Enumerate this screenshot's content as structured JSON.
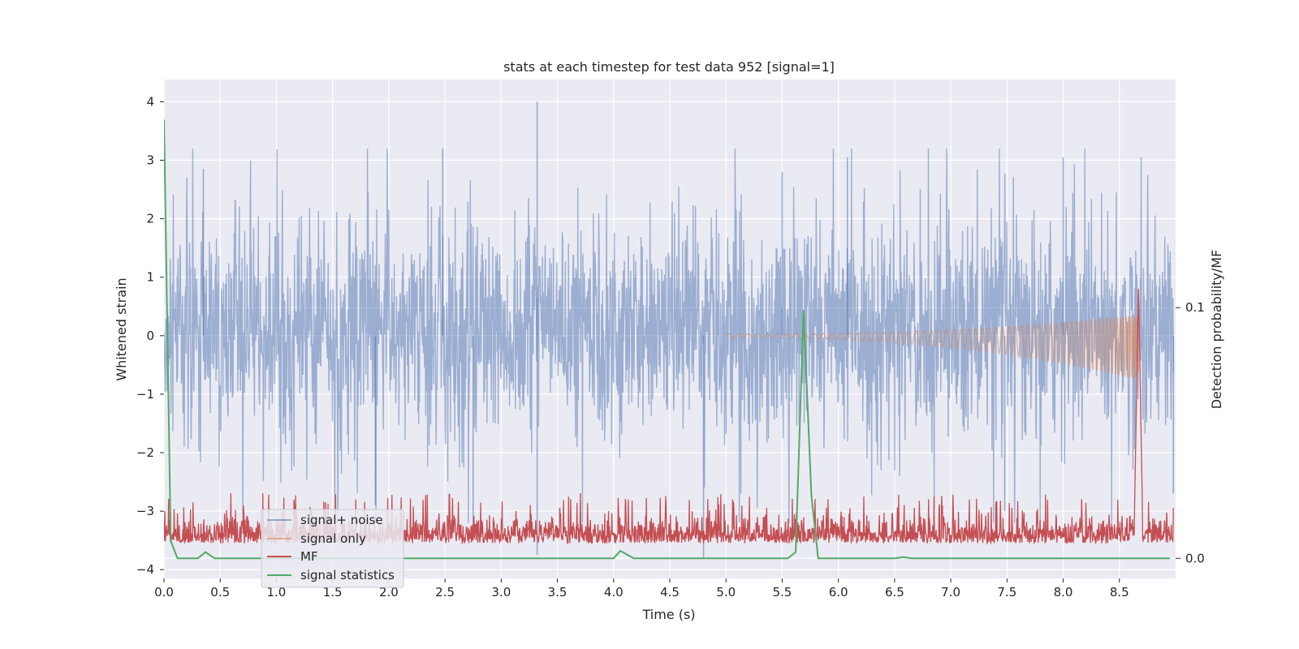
{
  "chart_data": {
    "type": "line",
    "title": "stats at each timestep for test data 952 [signal=1]",
    "xlabel": "Time (s)",
    "ylabel": "Whitened strain",
    "y2label": "Detection probability/MF",
    "xlim": [
      0,
      9.0
    ],
    "ylim": [
      -4.15,
      4.38
    ],
    "y2lim": [
      -0.008,
      0.191
    ],
    "x_ticks": [
      0.0,
      0.5,
      1.0,
      1.5,
      2.0,
      2.5,
      3.0,
      3.5,
      4.0,
      4.5,
      5.0,
      5.5,
      6.0,
      6.5,
      7.0,
      7.5,
      8.0,
      8.5
    ],
    "x_tick_labels": [
      "0.0",
      "0.5",
      "1.0",
      "1.5",
      "2.0",
      "2.5",
      "3.0",
      "3.5",
      "4.0",
      "4.5",
      "5.0",
      "5.5",
      "6.0",
      "6.5",
      "7.0",
      "7.5",
      "8.0",
      "8.5"
    ],
    "y_ticks": [
      4,
      3,
      2,
      1,
      0,
      -1,
      -2,
      -3,
      -4
    ],
    "y_tick_labels": [
      "4",
      "3",
      "2",
      "1",
      "0",
      "−1",
      "−2",
      "−3",
      "−4"
    ],
    "y2_ticks": [
      0.1,
      0.0
    ],
    "y2_tick_labels": [
      "0.1",
      "0.0"
    ],
    "grid": true,
    "legend_position": "lower-left",
    "series": [
      {
        "name": "signal+ noise",
        "axis": "left",
        "color": "#4c72b0",
        "style": "noise",
        "t_end": 8.98,
        "typical_range": [
          -1.6,
          1.8
        ],
        "extremes": [
          [
            3.32,
            4.0
          ],
          [
            3.32,
            -3.75
          ],
          [
            4.8,
            -3.8
          ],
          [
            2.75,
            -3.3
          ],
          [
            2.48,
            3.2
          ],
          [
            1.88,
            -2.9
          ],
          [
            0.35,
            2.85
          ],
          [
            5.5,
            2.8
          ],
          [
            6.08,
            3.05
          ],
          [
            7.48,
            -3.0
          ],
          [
            8.0,
            3.05
          ],
          [
            8.98,
            -2.7
          ]
        ]
      },
      {
        "name": "signal only",
        "axis": "left",
        "color": "#dd8452",
        "style": "chirp",
        "t_start": 5.0,
        "t_merger": 8.67,
        "peak_amplitude": [
          0.32,
          -0.72
        ]
      },
      {
        "name": "MF",
        "axis": "right",
        "color": "#c44e52",
        "style": "noise",
        "t_end": 8.98,
        "typical_range": [
          0.0,
          0.02
        ],
        "peak": [
          8.67,
          0.109
        ]
      },
      {
        "name": "signal statistics",
        "axis": "right",
        "color": "#55a868",
        "style": "line",
        "x": [
          0.0,
          0.06,
          0.12,
          0.3,
          0.37,
          0.45,
          4.0,
          4.06,
          4.18,
          5.55,
          5.62,
          5.69,
          5.76,
          5.82,
          6.5,
          6.58,
          6.65,
          8.95
        ],
        "y": [
          0.175,
          0.007,
          0.0,
          0.0,
          0.0025,
          0.0,
          0.0,
          0.003,
          0.0,
          0.0,
          0.0025,
          0.099,
          0.025,
          0.0,
          0.0,
          0.0005,
          0.0,
          0.0
        ]
      }
    ]
  }
}
